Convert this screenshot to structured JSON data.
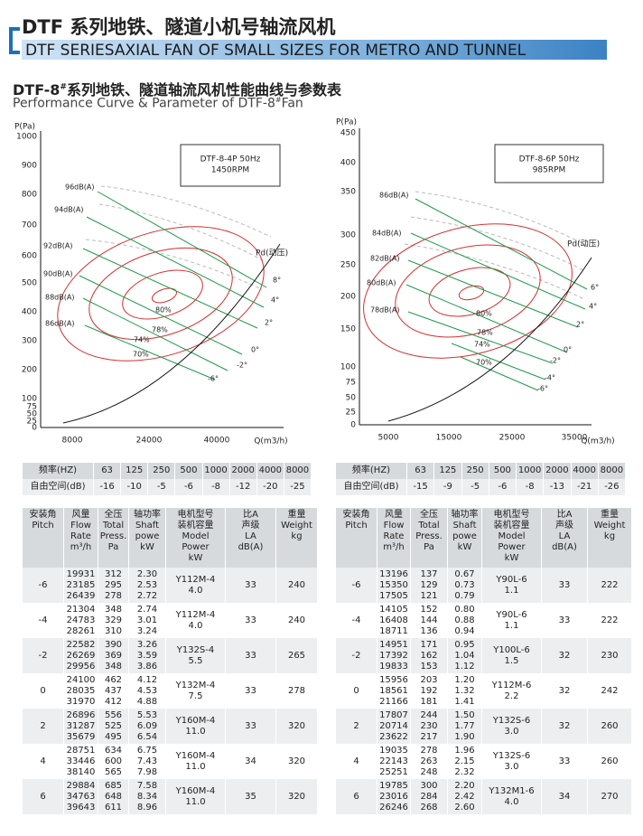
{
  "header": {
    "title": "DTF 系列地铁、隧道小机号轴流风机",
    "subtitle": "DTF SERIESAXIAL FAN OF SMALL SIZES FOR METRO AND TUNNEL"
  },
  "section": {
    "title_model": "DTF-8",
    "title_sup": "#",
    "title_rest": "系列地铁、隧道轴流风机性能曲线与参数表",
    "subtitle_main": "Performance Curve & Parameter of DTF-8",
    "subtitle_sup": "#",
    "subtitle_end": "Fan"
  },
  "charts": [
    {
      "y_label": "P(Pa)",
      "x_label": "Q(m3/h)",
      "yticks": [
        1000,
        900,
        800,
        700,
        600,
        500,
        400,
        300,
        200,
        100,
        75,
        50,
        25,
        0
      ],
      "xticks": [
        8000,
        24000,
        40000
      ],
      "box": [
        "DTF-8-4P 50Hz",
        "1450RPM"
      ],
      "pd_label": "Pd(动压)",
      "db_labels": [
        "96dB(A)",
        "94dB(A)",
        "92dB(A)",
        "90dB(A)",
        "88dB(A)",
        "86dB(A)"
      ],
      "eff_labels": [
        "80%",
        "78%",
        "74%",
        "70%"
      ],
      "angle_labels": [
        "8°",
        "4°",
        "2°",
        "0°",
        "-2°",
        "-6°"
      ]
    },
    {
      "y_label": "P(Pa)",
      "x_label": "Q(m3/h)",
      "yticks": [
        450,
        400,
        350,
        300,
        250,
        200,
        150,
        100,
        75,
        50,
        25,
        0
      ],
      "xticks": [
        5000,
        15000,
        25000,
        35000
      ],
      "box": [
        "DTF-8-6P 50Hz",
        "985RPM"
      ],
      "pd_label": "Pd(动压)",
      "db_labels": [
        "86dB(A)",
        "84dB(A)",
        "82dB(A)",
        "80dB(A)",
        "78dB(A)"
      ],
      "eff_labels": [
        "80%",
        "78%",
        "74%",
        "70%"
      ],
      "angle_labels": [
        "6°",
        "4°",
        "2°",
        "0°",
        "-2°",
        "-4°",
        "-6°"
      ]
    }
  ],
  "noise_tables": [
    {
      "freq_label": "频率(HZ)",
      "freqs": [
        63,
        125,
        250,
        500,
        1000,
        2000,
        4000,
        8000
      ],
      "atten_label": "自由空间(dB)",
      "atten": [
        -16,
        -10,
        -5,
        -6,
        -8,
        -12,
        -20,
        -25
      ]
    },
    {
      "freq_label": "频率(HZ)",
      "freqs": [
        63,
        125,
        250,
        500,
        1000,
        2000,
        4000,
        8000
      ],
      "atten_label": "自由空间(dB)",
      "atten": [
        -15,
        -9,
        -5,
        -6,
        -8,
        -13,
        -21,
        -26
      ]
    }
  ],
  "param_headers": [
    [
      "安装角",
      "Pitch"
    ],
    [
      "风量",
      "Flow",
      "Rate",
      "m³/h"
    ],
    [
      "全压",
      "Total",
      "Press.",
      "Pa"
    ],
    [
      "轴功率",
      "Shaft",
      "powe",
      "kW"
    ],
    [
      "电机型号",
      "装机容量",
      "Model",
      "Power",
      "kW"
    ],
    [
      "比A",
      "声级",
      "LA",
      "dB(A)"
    ],
    [
      "重量",
      "Weight",
      "kg"
    ]
  ],
  "param_tables": [
    {
      "rows": [
        {
          "pitch": -6,
          "flow": [
            19931,
            23185,
            26439
          ],
          "press": [
            312,
            295,
            278
          ],
          "power": [
            "2.30",
            "2.53",
            "2.72"
          ],
          "model": "Y112M-4",
          "kw": "4.0",
          "db": 33,
          "weight": 240
        },
        {
          "pitch": -4,
          "flow": [
            21304,
            24783,
            28261
          ],
          "press": [
            348,
            329,
            310
          ],
          "power": [
            "2.74",
            "3.01",
            "3.24"
          ],
          "model": "Y112M-4",
          "kw": "4.0",
          "db": 33,
          "weight": 240
        },
        {
          "pitch": -2,
          "flow": [
            22582,
            26269,
            29956
          ],
          "press": [
            390,
            369,
            348
          ],
          "power": [
            "3.26",
            "3.59",
            "3.86"
          ],
          "model": "Y132S-4",
          "kw": "5.5",
          "db": 33,
          "weight": 265
        },
        {
          "pitch": 0,
          "flow": [
            24100,
            28035,
            31970
          ],
          "press": [
            462,
            437,
            412
          ],
          "power": [
            "4.12",
            "4.53",
            "4.88"
          ],
          "model": "Y132M-4",
          "kw": "7.5",
          "db": 33,
          "weight": 278
        },
        {
          "pitch": 2,
          "flow": [
            26896,
            31287,
            35679
          ],
          "press": [
            556,
            525,
            495
          ],
          "power": [
            "5.53",
            "6.09",
            "6.54"
          ],
          "model": "Y160M-4",
          "kw": "11.0",
          "db": 33,
          "weight": 320
        },
        {
          "pitch": 4,
          "flow": [
            28751,
            33446,
            38140
          ],
          "press": [
            634,
            600,
            565
          ],
          "power": [
            "6.75",
            "7.43",
            "7.98"
          ],
          "model": "Y160M-4",
          "kw": "11.0",
          "db": 34,
          "weight": 320
        },
        {
          "pitch": 6,
          "flow": [
            29884,
            34763,
            39643
          ],
          "press": [
            685,
            648,
            611
          ],
          "power": [
            "7.58",
            "8.34",
            "8.96"
          ],
          "model": "Y160M-4",
          "kw": "11.0",
          "db": 35,
          "weight": 320
        }
      ]
    },
    {
      "rows": [
        {
          "pitch": -6,
          "flow": [
            13196,
            15350,
            17505
          ],
          "press": [
            137,
            129,
            121
          ],
          "power": [
            "0.67",
            "0.73",
            "0.79"
          ],
          "model": "Y90L-6",
          "kw": "1.1",
          "db": 33,
          "weight": 222
        },
        {
          "pitch": -4,
          "flow": [
            14105,
            16408,
            18711
          ],
          "press": [
            152,
            144,
            136
          ],
          "power": [
            "0.80",
            "0.88",
            "0.94"
          ],
          "model": "Y90L-6",
          "kw": "1.1",
          "db": 33,
          "weight": 222
        },
        {
          "pitch": -2,
          "flow": [
            14951,
            17392,
            19833
          ],
          "press": [
            171,
            162,
            153
          ],
          "power": [
            "0.95",
            "1.04",
            "1.12"
          ],
          "model": "Y100L-6",
          "kw": "1.5",
          "db": 32,
          "weight": 230
        },
        {
          "pitch": 0,
          "flow": [
            15956,
            18561,
            21166
          ],
          "press": [
            203,
            192,
            181
          ],
          "power": [
            "1.20",
            "1.32",
            "1.41"
          ],
          "model": "Y112M-6",
          "kw": "2.2",
          "db": 32,
          "weight": 242
        },
        {
          "pitch": 2,
          "flow": [
            17807,
            20714,
            23622
          ],
          "press": [
            244,
            230,
            217
          ],
          "power": [
            "1.50",
            "1.77",
            "1.90"
          ],
          "model": "Y132S-6",
          "kw": "3.0",
          "db": 32,
          "weight": 260
        },
        {
          "pitch": 4,
          "flow": [
            19035,
            22143,
            25251
          ],
          "press": [
            278,
            263,
            248
          ],
          "power": [
            "1.96",
            "2.15",
            "2.32"
          ],
          "model": "Y132S-6",
          "kw": "3.0",
          "db": 33,
          "weight": 260
        },
        {
          "pitch": 6,
          "flow": [
            19785,
            23016,
            26246
          ],
          "press": [
            300,
            284,
            268
          ],
          "power": [
            "2.20",
            "2.42",
            "2.60"
          ],
          "model": "Y132M1-6",
          "kw": "4.0",
          "db": 34,
          "weight": 270
        }
      ]
    }
  ]
}
